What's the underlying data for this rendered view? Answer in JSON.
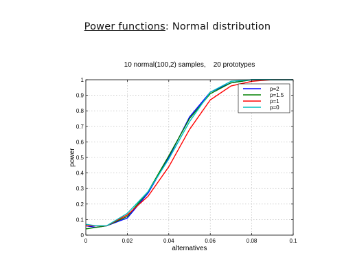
{
  "slide": {
    "title_part1": "Power functions",
    "title_part2": ":  Normal distribution"
  },
  "chart_data": {
    "type": "line",
    "title": "10 normal(100,2) samples,    20 prototypes",
    "xlabel": "alternatives",
    "ylabel": "power",
    "xlim": [
      0,
      0.1
    ],
    "ylim": [
      0,
      1
    ],
    "xticks": [
      0,
      0.02,
      0.04,
      0.06,
      0.08,
      0.1
    ],
    "xtick_labels": [
      "0",
      "0.02",
      "0.04",
      "0.06",
      "0.08",
      "0.1"
    ],
    "yticks": [
      0,
      0.1,
      0.2,
      0.3,
      0.4,
      0.5,
      0.6,
      0.7,
      0.8,
      0.9,
      1
    ],
    "ytick_labels": [
      "0",
      "0.1",
      "0.2",
      "0.3",
      "0.4",
      "0.5",
      "0.6",
      "0.7",
      "0.8",
      "0.9",
      "1"
    ],
    "grid": true,
    "legend_position": "top-right",
    "x": [
      0,
      0.005,
      0.01,
      0.02,
      0.03,
      0.04,
      0.05,
      0.06,
      0.07,
      0.08,
      0.09,
      0.1
    ],
    "series": [
      {
        "name": "p=2",
        "color": "#0000ff",
        "values": [
          0.06,
          0.05,
          0.06,
          0.11,
          0.27,
          0.5,
          0.76,
          0.92,
          0.98,
          1.0,
          1.0,
          1.0
        ]
      },
      {
        "name": "p=1.5",
        "color": "#008000",
        "values": [
          0.04,
          0.05,
          0.06,
          0.12,
          0.28,
          0.51,
          0.75,
          0.91,
          0.98,
          1.0,
          1.0,
          1.0
        ]
      },
      {
        "name": "p=1",
        "color": "#ff0000",
        "values": [
          0.06,
          0.06,
          0.06,
          0.13,
          0.25,
          0.44,
          0.68,
          0.87,
          0.96,
          0.99,
          1.0,
          1.0
        ]
      },
      {
        "name": "p=0",
        "color": "#00bfbf",
        "values": [
          0.07,
          0.06,
          0.06,
          0.14,
          0.28,
          0.49,
          0.73,
          0.92,
          0.99,
          1.0,
          1.0,
          1.0
        ]
      }
    ]
  }
}
